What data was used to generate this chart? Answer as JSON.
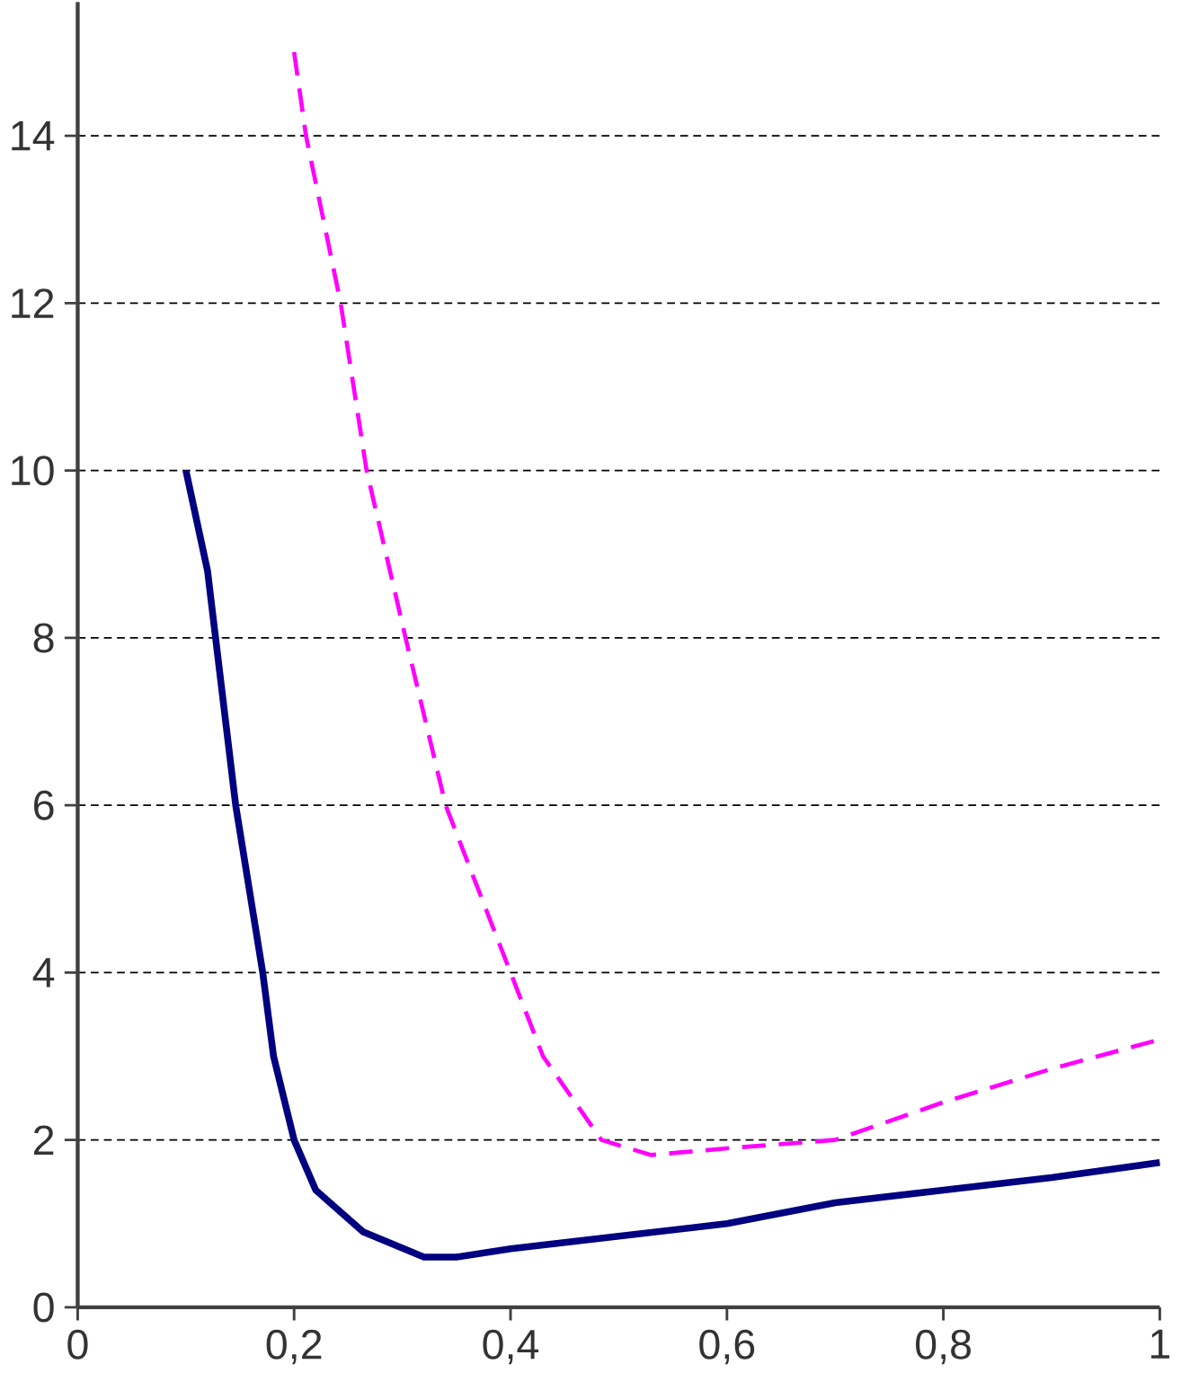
{
  "chart_data": {
    "type": "line",
    "xlim": [
      0,
      1
    ],
    "ylim": [
      0,
      15.6
    ],
    "xticks": [
      0,
      {
        "value": 0.2,
        "label": "0,2"
      },
      {
        "value": 0.4,
        "label": "0,4"
      },
      {
        "value": 0.6,
        "label": "0,6"
      },
      {
        "value": 0.8,
        "label": "0,8"
      },
      1
    ],
    "yticks": [
      0,
      2,
      4,
      6,
      8,
      10,
      12,
      14
    ],
    "grid": "y",
    "marker": "none",
    "series": [
      {
        "color": "#000080",
        "line_style": "solid",
        "x": [
          0.1,
          0.12,
          0.146,
          0.171,
          0.181,
          0.2,
          0.22,
          0.264,
          0.32,
          0.35,
          0.4,
          0.5,
          0.6,
          0.7,
          0.8,
          0.9,
          1.0
        ],
        "values": [
          10,
          8.8,
          6,
          4,
          3,
          2,
          1.4,
          0.9,
          0.6,
          0.6,
          0.7,
          0.85,
          1.0,
          1.25,
          1.4,
          1.55,
          1.73
        ]
      },
      {
        "color": "#ff00ff",
        "line_style": "dashed",
        "x": [
          0.2,
          0.211,
          0.243,
          0.267,
          0.303,
          0.34,
          0.4,
          0.43,
          0.484,
          0.53,
          0.6,
          0.7,
          0.8,
          0.9,
          1.0
        ],
        "values": [
          15,
          14,
          12,
          10,
          8,
          6,
          4,
          3,
          2,
          1.82,
          1.9,
          2.0,
          2.45,
          2.85,
          3.2
        ]
      }
    ]
  }
}
